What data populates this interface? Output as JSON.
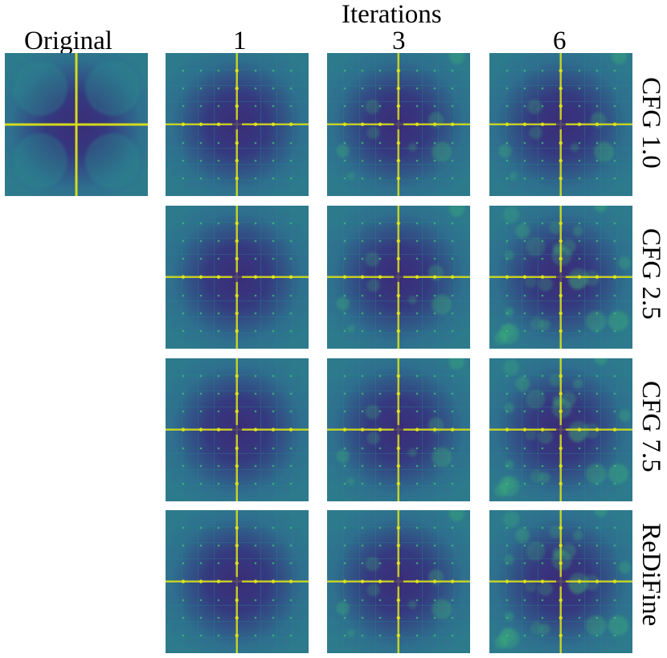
{
  "header": {
    "iterations_label": "Iterations",
    "original_label": "Original",
    "columns": [
      "1",
      "3",
      "6"
    ]
  },
  "rows": [
    "CFG 1.0",
    "CFG 2.5",
    "CFG 7.5",
    "ReDiFine"
  ],
  "colors": {
    "bg_dark": "#3b2c78",
    "mid": "#2e6f8e",
    "teal": "#238a8d",
    "green": "#3fbf73",
    "bright": "#dde318"
  }
}
